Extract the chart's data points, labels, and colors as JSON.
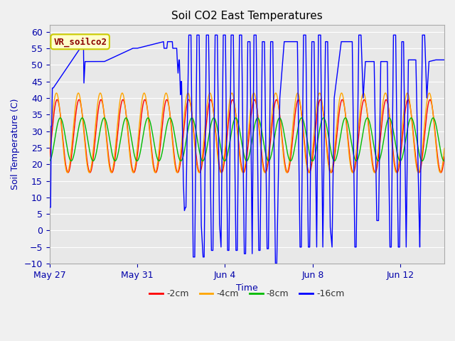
{
  "title": "Soil CO2 East Temperatures",
  "xlabel": "Time",
  "ylabel": "Soil Temperature (C)",
  "ylim": [
    -10,
    62
  ],
  "yticks": [
    -10,
    -5,
    0,
    5,
    10,
    15,
    20,
    25,
    30,
    35,
    40,
    45,
    50,
    55,
    60
  ],
  "x_tick_days": [
    0,
    4,
    8,
    12,
    16
  ],
  "x_tick_labels": [
    "May 27",
    "May 31",
    "Jun 4",
    "Jun 8",
    "Jun 12"
  ],
  "total_days": 18,
  "plot_bg_color": "#e8e8e8",
  "fig_bg_color": "#f0f0f0",
  "line_colors": {
    "2cm": "#ff0000",
    "4cm": "#ffa500",
    "8cm": "#00bb00",
    "16cm": "#0000ff"
  },
  "legend_label": "VR_soilco2",
  "legend_bg": "#ffffcc",
  "legend_border": "#cccc00",
  "tick_color": "#0000aa",
  "legend_items": [
    "-2cm",
    "-4cm",
    "-8cm",
    "-16cm"
  ],
  "grid_color": "#ffffff",
  "title_fontsize": 11,
  "axis_label_fontsize": 9,
  "tick_fontsize": 9
}
